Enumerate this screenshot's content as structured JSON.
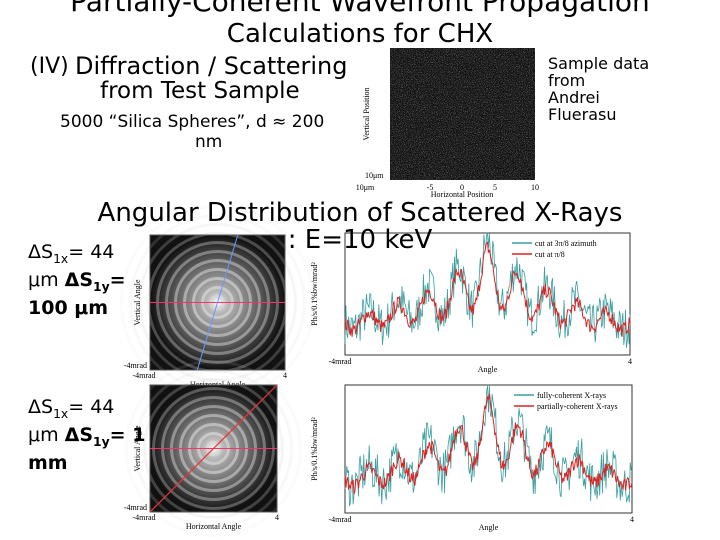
{
  "slide": {
    "title": [
      "Partially-Coherent Wavefront Propagation",
      "Calculations for CHX"
    ],
    "section": {
      "number": "(IV)",
      "lines": [
        "Diffraction / Scattering",
        "from Test Sample"
      ]
    },
    "sample": [
      "5000 “Silica Spheres”, d ≈ 200",
      "nm"
    ],
    "note": [
      "Sample data",
      "from",
      "Andrei",
      "Fluerasu"
    ],
    "sample_image": {
      "x_label": "Horizontal Position",
      "y_label": "Vertical Position",
      "x_ticks": [
        "10μm",
        "-5",
        "0",
        "5",
        "10"
      ],
      "y_ticks": [
        "10μm"
      ]
    },
    "heading": [
      "Angular Distribution of Scattered X-Rays",
      ": E=10 keV"
    ],
    "cases": [
      {
        "parts": [
          "ΔS",
          "1x",
          "= 44",
          "μm ",
          "ΔS",
          "1y",
          "=",
          "100 μm"
        ]
      },
      {
        "parts": [
          "ΔS",
          "1x",
          "= 44",
          "μm ",
          "ΔS",
          "1y",
          "= 1",
          "mm"
        ]
      }
    ],
    "ring_images": [
      {
        "x_label": "Horizontal Angle",
        "y_label": "Vertical Angle",
        "x_ticks": [
          "-4mrad",
          "4"
        ],
        "y_ticks": [
          "-4mrad"
        ]
      },
      {
        "x_label": "Horizontal Angle",
        "y_label": "Vertical Angle",
        "x_ticks": [
          "-4mrad",
          "4"
        ],
        "y_ticks": [
          "-4mrad"
        ]
      }
    ],
    "cut_plots": [
      {
        "x_label": "Angle",
        "y_label": "Ph/s/0.1%bw/mrad²",
        "x_ticks": [
          "-4mrad",
          "4"
        ],
        "legend": [
          "cut at 3π/8 azimuth",
          "cut at π/8"
        ]
      },
      {
        "x_label": "Angle",
        "y_label": "Ph/s/0.1%bw/mrad²",
        "x_ticks": [
          "-4mrad",
          "4"
        ],
        "legend": [
          "fully-coherent X-rays",
          "partially-coherent X-rays"
        ]
      }
    ]
  }
}
